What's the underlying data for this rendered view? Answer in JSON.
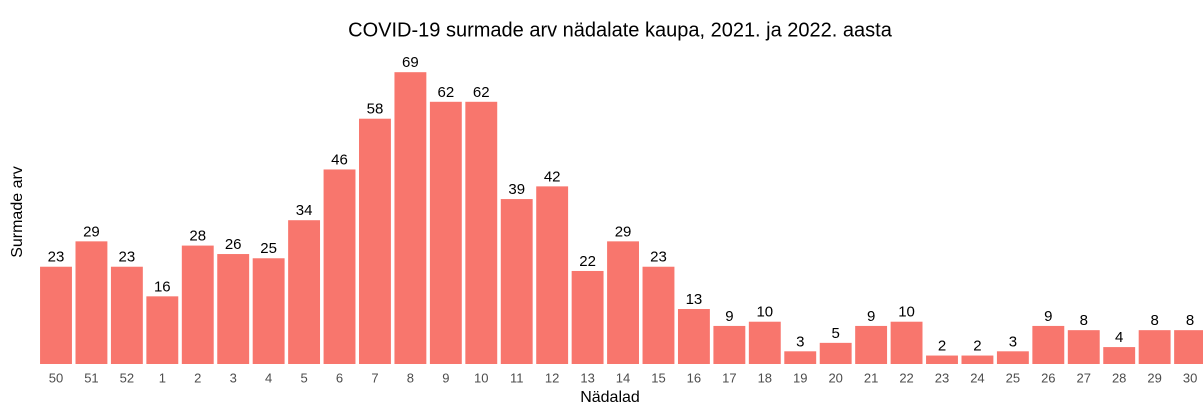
{
  "chart_data": {
    "type": "bar",
    "title": "COVID-19 surmade arv nädalate kaupa, 2021. ja 2022. aasta",
    "x_label": "Nädalad",
    "y_label": "Surmade arv",
    "categories": [
      "50",
      "51",
      "52",
      "1",
      "2",
      "3",
      "4",
      "5",
      "6",
      "7",
      "8",
      "9",
      "10",
      "11",
      "12",
      "13",
      "14",
      "15",
      "16",
      "17",
      "18",
      "19",
      "20",
      "21",
      "22",
      "23",
      "24",
      "25",
      "26",
      "27",
      "28",
      "29",
      "30"
    ],
    "values": [
      23,
      29,
      23,
      16,
      28,
      26,
      25,
      34,
      46,
      58,
      69,
      62,
      62,
      39,
      42,
      22,
      29,
      23,
      13,
      9,
      10,
      3,
      5,
      9,
      10,
      2,
      2,
      3,
      9,
      8,
      4,
      8,
      8
    ],
    "color": "#f8766d",
    "ylim": [
      0,
      72
    ]
  }
}
